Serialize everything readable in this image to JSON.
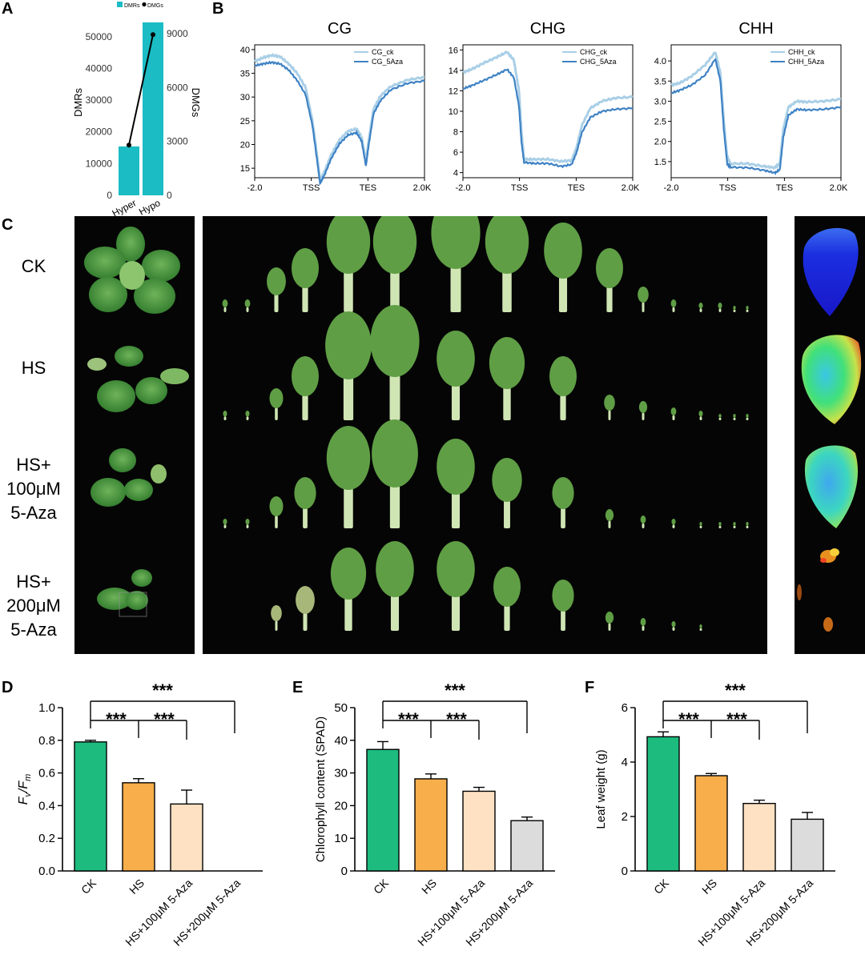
{
  "panel_labels": {
    "a": "A",
    "b": "B",
    "c": "C",
    "d": "D",
    "e": "E",
    "f": "F"
  },
  "colors": {
    "teal": "#1bbcc4",
    "ck_light": "#a9cfe6",
    "aza_dark": "#3e82c4",
    "green": "#1dbb7e",
    "orange": "#f8ae4b",
    "peach": "#fde1c2",
    "gray": "#dcdcdc"
  },
  "row_labels": {
    "ck": "CK",
    "hs": "HS",
    "hs100": [
      "HS+",
      "100μM",
      "5-Aza"
    ],
    "hs200": [
      "HS+",
      "200μM",
      "5-Aza"
    ]
  },
  "chart_data": [
    {
      "id": "A",
      "type": "bar",
      "categories": [
        "Hyper",
        "Hypo"
      ],
      "series": [
        {
          "name": "DMRs",
          "values": [
            15400,
            54500
          ]
        },
        {
          "name": "DMGs",
          "values": [
            2800,
            8950
          ]
        }
      ],
      "legend": [
        "DMRs",
        "DMGs"
      ],
      "legend_position": "top",
      "ylabel": "DMRs",
      "ylim": [
        0,
        56000
      ],
      "yticks": [
        0,
        10000,
        20000,
        30000,
        40000,
        50000
      ],
      "y2label": "DMGs",
      "y2lim": [
        0,
        9900
      ],
      "y2ticks": [
        0,
        3000,
        6000,
        9000
      ]
    },
    {
      "id": "B-CG",
      "type": "line",
      "title": "CG",
      "xticks": [
        "-2.0",
        "TSS",
        "TES",
        "2.0Kb"
      ],
      "yticks": [
        15,
        20,
        25,
        30,
        35,
        40
      ],
      "ylim": [
        13,
        41
      ],
      "legend": [
        "CG_ck",
        "CG_5Aza"
      ],
      "legend_position": "top-right",
      "series": [
        {
          "name": "CG_ck",
          "points": [
            [
              0,
              37.5
            ],
            [
              0.05,
              38.3
            ],
            [
              0.1,
              38.8
            ],
            [
              0.15,
              38.5
            ],
            [
              0.2,
              37
            ],
            [
              0.25,
              35
            ],
            [
              0.3,
              32
            ],
            [
              0.34,
              25
            ],
            [
              0.37,
              17
            ],
            [
              0.385,
              12.5
            ],
            [
              0.41,
              14.2
            ],
            [
              0.45,
              17.8
            ],
            [
              0.5,
              21
            ],
            [
              0.55,
              22.8
            ],
            [
              0.6,
              23.3
            ],
            [
              0.63,
              21.5
            ],
            [
              0.655,
              16.5
            ],
            [
              0.67,
              20.5
            ],
            [
              0.7,
              27.5
            ],
            [
              0.74,
              30.2
            ],
            [
              0.8,
              32.2
            ],
            [
              0.9,
              33.6
            ],
            [
              1,
              34.2
            ]
          ]
        },
        {
          "name": "CG_5Aza",
          "points": [
            [
              0,
              36.6
            ],
            [
              0.05,
              37
            ],
            [
              0.1,
              37.3
            ],
            [
              0.15,
              37
            ],
            [
              0.2,
              35.7
            ],
            [
              0.25,
              33.5
            ],
            [
              0.3,
              30.5
            ],
            [
              0.34,
              24
            ],
            [
              0.37,
              16
            ],
            [
              0.385,
              11.8
            ],
            [
              0.41,
              13.5
            ],
            [
              0.45,
              17
            ],
            [
              0.5,
              20.2
            ],
            [
              0.55,
              22
            ],
            [
              0.6,
              22.5
            ],
            [
              0.63,
              20.7
            ],
            [
              0.655,
              15.5
            ],
            [
              0.67,
              19.5
            ],
            [
              0.7,
              26.5
            ],
            [
              0.74,
              29.2
            ],
            [
              0.8,
              31.5
            ],
            [
              0.9,
              32.9
            ],
            [
              1,
              33.4
            ]
          ]
        }
      ]
    },
    {
      "id": "B-CHG",
      "type": "line",
      "title": "CHG",
      "xticks": [
        "-2.0",
        "TSS",
        "TES",
        "2.0Kb"
      ],
      "yticks": [
        4,
        6,
        8,
        10,
        12,
        14,
        16
      ],
      "ylim": [
        3.5,
        16.5
      ],
      "legend": [
        "CHG_ck",
        "CHG_5Aza"
      ],
      "legend_position": "top-right",
      "series": [
        {
          "name": "CHG_ck",
          "points": [
            [
              0,
              13.8
            ],
            [
              0.05,
              14.1
            ],
            [
              0.12,
              14.7
            ],
            [
              0.2,
              15.3
            ],
            [
              0.26,
              15.8
            ],
            [
              0.3,
              15
            ],
            [
              0.33,
              12
            ],
            [
              0.345,
              8
            ],
            [
              0.36,
              5.3
            ],
            [
              0.42,
              5.3
            ],
            [
              0.5,
              5.3
            ],
            [
              0.58,
              5.1
            ],
            [
              0.64,
              5.2
            ],
            [
              0.67,
              6.5
            ],
            [
              0.7,
              8.6
            ],
            [
              0.75,
              10.3
            ],
            [
              0.82,
              11
            ],
            [
              0.9,
              11.3
            ],
            [
              1,
              11.4
            ]
          ]
        },
        {
          "name": "CHG_5Aza",
          "points": [
            [
              0,
              12.2
            ],
            [
              0.05,
              12.5
            ],
            [
              0.12,
              13
            ],
            [
              0.2,
              13.6
            ],
            [
              0.26,
              14.1
            ],
            [
              0.3,
              13.3
            ],
            [
              0.33,
              10.5
            ],
            [
              0.345,
              7
            ],
            [
              0.36,
              5
            ],
            [
              0.42,
              4.9
            ],
            [
              0.5,
              4.9
            ],
            [
              0.58,
              4.6
            ],
            [
              0.64,
              4.8
            ],
            [
              0.67,
              6
            ],
            [
              0.7,
              7.9
            ],
            [
              0.75,
              9.4
            ],
            [
              0.82,
              10
            ],
            [
              0.9,
              10.2
            ],
            [
              1,
              10.3
            ]
          ]
        }
      ]
    },
    {
      "id": "B-CHH",
      "type": "line",
      "title": "CHH",
      "xticks": [
        "-2.0",
        "TSS",
        "TES",
        "2.0Kb"
      ],
      "yticks": [
        1.5,
        2.0,
        2.5,
        3.0,
        3.5,
        4.0
      ],
      "ylim": [
        1.1,
        4.4
      ],
      "legend": [
        "CHH_ck",
        "CHH_5Aza"
      ],
      "legend_position": "top-right",
      "series": [
        {
          "name": "CHH_ck",
          "points": [
            [
              0,
              3.4
            ],
            [
              0.05,
              3.45
            ],
            [
              0.12,
              3.62
            ],
            [
              0.2,
              3.9
            ],
            [
              0.26,
              4.22
            ],
            [
              0.29,
              3.7
            ],
            [
              0.31,
              2.5
            ],
            [
              0.33,
              1.6
            ],
            [
              0.35,
              1.45
            ],
            [
              0.45,
              1.45
            ],
            [
              0.55,
              1.38
            ],
            [
              0.61,
              1.35
            ],
            [
              0.64,
              1.45
            ],
            [
              0.66,
              2.3
            ],
            [
              0.69,
              2.85
            ],
            [
              0.74,
              3
            ],
            [
              0.8,
              2.98
            ],
            [
              0.9,
              3
            ],
            [
              1,
              3.05
            ]
          ]
        },
        {
          "name": "CHH_5Aza",
          "points": [
            [
              0,
              3.2
            ],
            [
              0.05,
              3.27
            ],
            [
              0.12,
              3.4
            ],
            [
              0.2,
              3.65
            ],
            [
              0.26,
              4.05
            ],
            [
              0.29,
              3.5
            ],
            [
              0.31,
              2.3
            ],
            [
              0.33,
              1.45
            ],
            [
              0.35,
              1.36
            ],
            [
              0.45,
              1.35
            ],
            [
              0.55,
              1.28
            ],
            [
              0.61,
              1.22
            ],
            [
              0.64,
              1.3
            ],
            [
              0.66,
              2.1
            ],
            [
              0.69,
              2.65
            ],
            [
              0.74,
              2.8
            ],
            [
              0.8,
              2.78
            ],
            [
              0.9,
              2.8
            ],
            [
              1,
              2.85
            ]
          ]
        }
      ]
    },
    {
      "id": "D",
      "type": "bar",
      "categories": [
        "CK",
        "HS",
        "HS+100μM 5-Aza",
        "HS+200μM 5-Aza"
      ],
      "values": [
        0.79,
        0.54,
        0.41,
        0
      ],
      "errors": [
        0.01,
        0.025,
        0.085,
        0
      ],
      "ylabel_main": "F",
      "ylabel_sub_v": "v",
      "ylabel_slash": "/",
      "ylabel_sub_m": "m",
      "ylim": [
        0,
        1.0
      ],
      "yticks": [
        "0.0",
        "0.2",
        "0.4",
        "0.6",
        "0.8",
        "1.0"
      ],
      "significance": "***"
    },
    {
      "id": "E",
      "type": "bar",
      "categories": [
        "CK",
        "HS",
        "HS+100μM 5-Aza",
        "HS+200μM 5-Aza"
      ],
      "values": [
        37.2,
        28.2,
        24.4,
        15.4
      ],
      "errors": [
        2.4,
        1.5,
        1.2,
        1.1
      ],
      "ylabel": "Chlorophyll content (SPAD)",
      "ylim": [
        0,
        50
      ],
      "yticks": [
        "0",
        "10",
        "20",
        "30",
        "40",
        "50"
      ],
      "significance": "***"
    },
    {
      "id": "F",
      "type": "bar",
      "categories": [
        "CK",
        "HS",
        "HS+100μM 5-Aza",
        "HS+200μM 5-Aza"
      ],
      "values": [
        4.93,
        3.5,
        2.48,
        1.9
      ],
      "errors": [
        0.18,
        0.08,
        0.12,
        0.25
      ],
      "ylabel": "Leaf weight  (g)",
      "ylim": [
        0,
        6
      ],
      "yticks": [
        "0",
        "2",
        "4",
        "6"
      ],
      "significance": "***"
    }
  ]
}
